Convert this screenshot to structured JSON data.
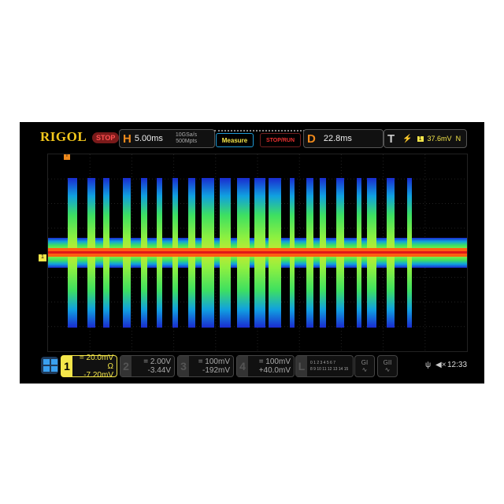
{
  "header": {
    "logo": "RIGOL",
    "run_state": "STOP",
    "horizontal": {
      "letter": "H",
      "timebase": "5.00ms",
      "sample_rate": "10GSa/s",
      "memory_depth": "500Mpts"
    },
    "measure_label": "Measure",
    "stop_run_label": "STOP/RUN",
    "delay": {
      "letter": "D",
      "value": "22.8ms"
    },
    "trigger": {
      "letter": "T",
      "slope_icon": "rising-edge-icon",
      "source": "1",
      "level": "37.6mV",
      "mode": "N"
    }
  },
  "markers": {
    "trigger_pos": "T",
    "channel1": "1"
  },
  "channels": [
    {
      "num": "1",
      "scale": "= 20.0mV",
      "offset": "-7.20mV",
      "coupling": "Ω",
      "active": true,
      "color": "#f4e64a"
    },
    {
      "num": "2",
      "scale": "= 2.00V",
      "offset": "-3.44V",
      "active": false
    },
    {
      "num": "3",
      "scale": "= 100mV",
      "offset": "-192mV",
      "active": false
    },
    {
      "num": "4",
      "scale": "= 100mV",
      "offset": "+40.0mV",
      "active": false
    }
  ],
  "logic": {
    "letter": "L",
    "row1": "0 1 2 3  4 5 6 7",
    "row2": "8 9 10 11 12 13 14 15"
  },
  "generators": [
    "GI",
    "GII"
  ],
  "status": {
    "usb_icon": "usb-icon",
    "sound_icon": "speaker-mute-icon",
    "time": "12:33"
  }
}
